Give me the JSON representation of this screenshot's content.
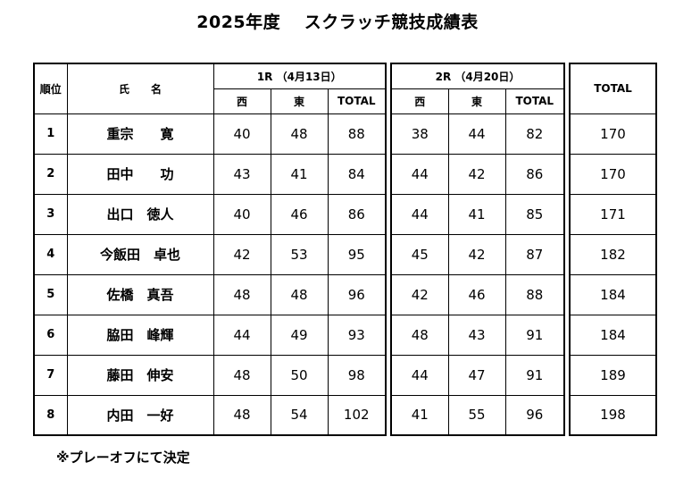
{
  "title": "2025年度　 スクラッチ競技成績表",
  "headers": {
    "rank": "順位",
    "name": "氏　　名",
    "round1": "1R （4月13日）",
    "round2": "2R （4月20日）",
    "west": "西",
    "east": "東",
    "total": "TOTAL",
    "grand_total": "TOTAL"
  },
  "rows": [
    {
      "rank": "1",
      "name": "重宗　　寛",
      "r1_west": "40",
      "r1_east": "48",
      "r1_total": "88",
      "r2_west": "38",
      "r2_east": "44",
      "r2_total": "82",
      "total": "170"
    },
    {
      "rank": "2",
      "name": "田中　　功",
      "r1_west": "43",
      "r1_east": "41",
      "r1_total": "84",
      "r2_west": "44",
      "r2_east": "42",
      "r2_total": "86",
      "total": "170"
    },
    {
      "rank": "3",
      "name": "出口　徳人",
      "r1_west": "40",
      "r1_east": "46",
      "r1_total": "86",
      "r2_west": "44",
      "r2_east": "41",
      "r2_total": "85",
      "total": "171"
    },
    {
      "rank": "4",
      "name": "今飯田　卓也",
      "r1_west": "42",
      "r1_east": "53",
      "r1_total": "95",
      "r2_west": "45",
      "r2_east": "42",
      "r2_total": "87",
      "total": "182"
    },
    {
      "rank": "5",
      "name": "佐橋　真吾",
      "r1_west": "48",
      "r1_east": "48",
      "r1_total": "96",
      "r2_west": "42",
      "r2_east": "46",
      "r2_total": "88",
      "total": "184"
    },
    {
      "rank": "6",
      "name": "脇田　峰輝",
      "r1_west": "44",
      "r1_east": "49",
      "r1_total": "93",
      "r2_west": "48",
      "r2_east": "43",
      "r2_total": "91",
      "total": "184"
    },
    {
      "rank": "7",
      "name": "藤田　伸安",
      "r1_west": "48",
      "r1_east": "50",
      "r1_total": "98",
      "r2_west": "44",
      "r2_east": "47",
      "r2_total": "91",
      "total": "189"
    },
    {
      "rank": "8",
      "name": "内田　一好",
      "r1_west": "48",
      "r1_east": "54",
      "r1_total": "102",
      "r2_west": "41",
      "r2_east": "55",
      "r2_total": "96",
      "total": "198"
    }
  ],
  "note": "※プレーオフにて決定"
}
